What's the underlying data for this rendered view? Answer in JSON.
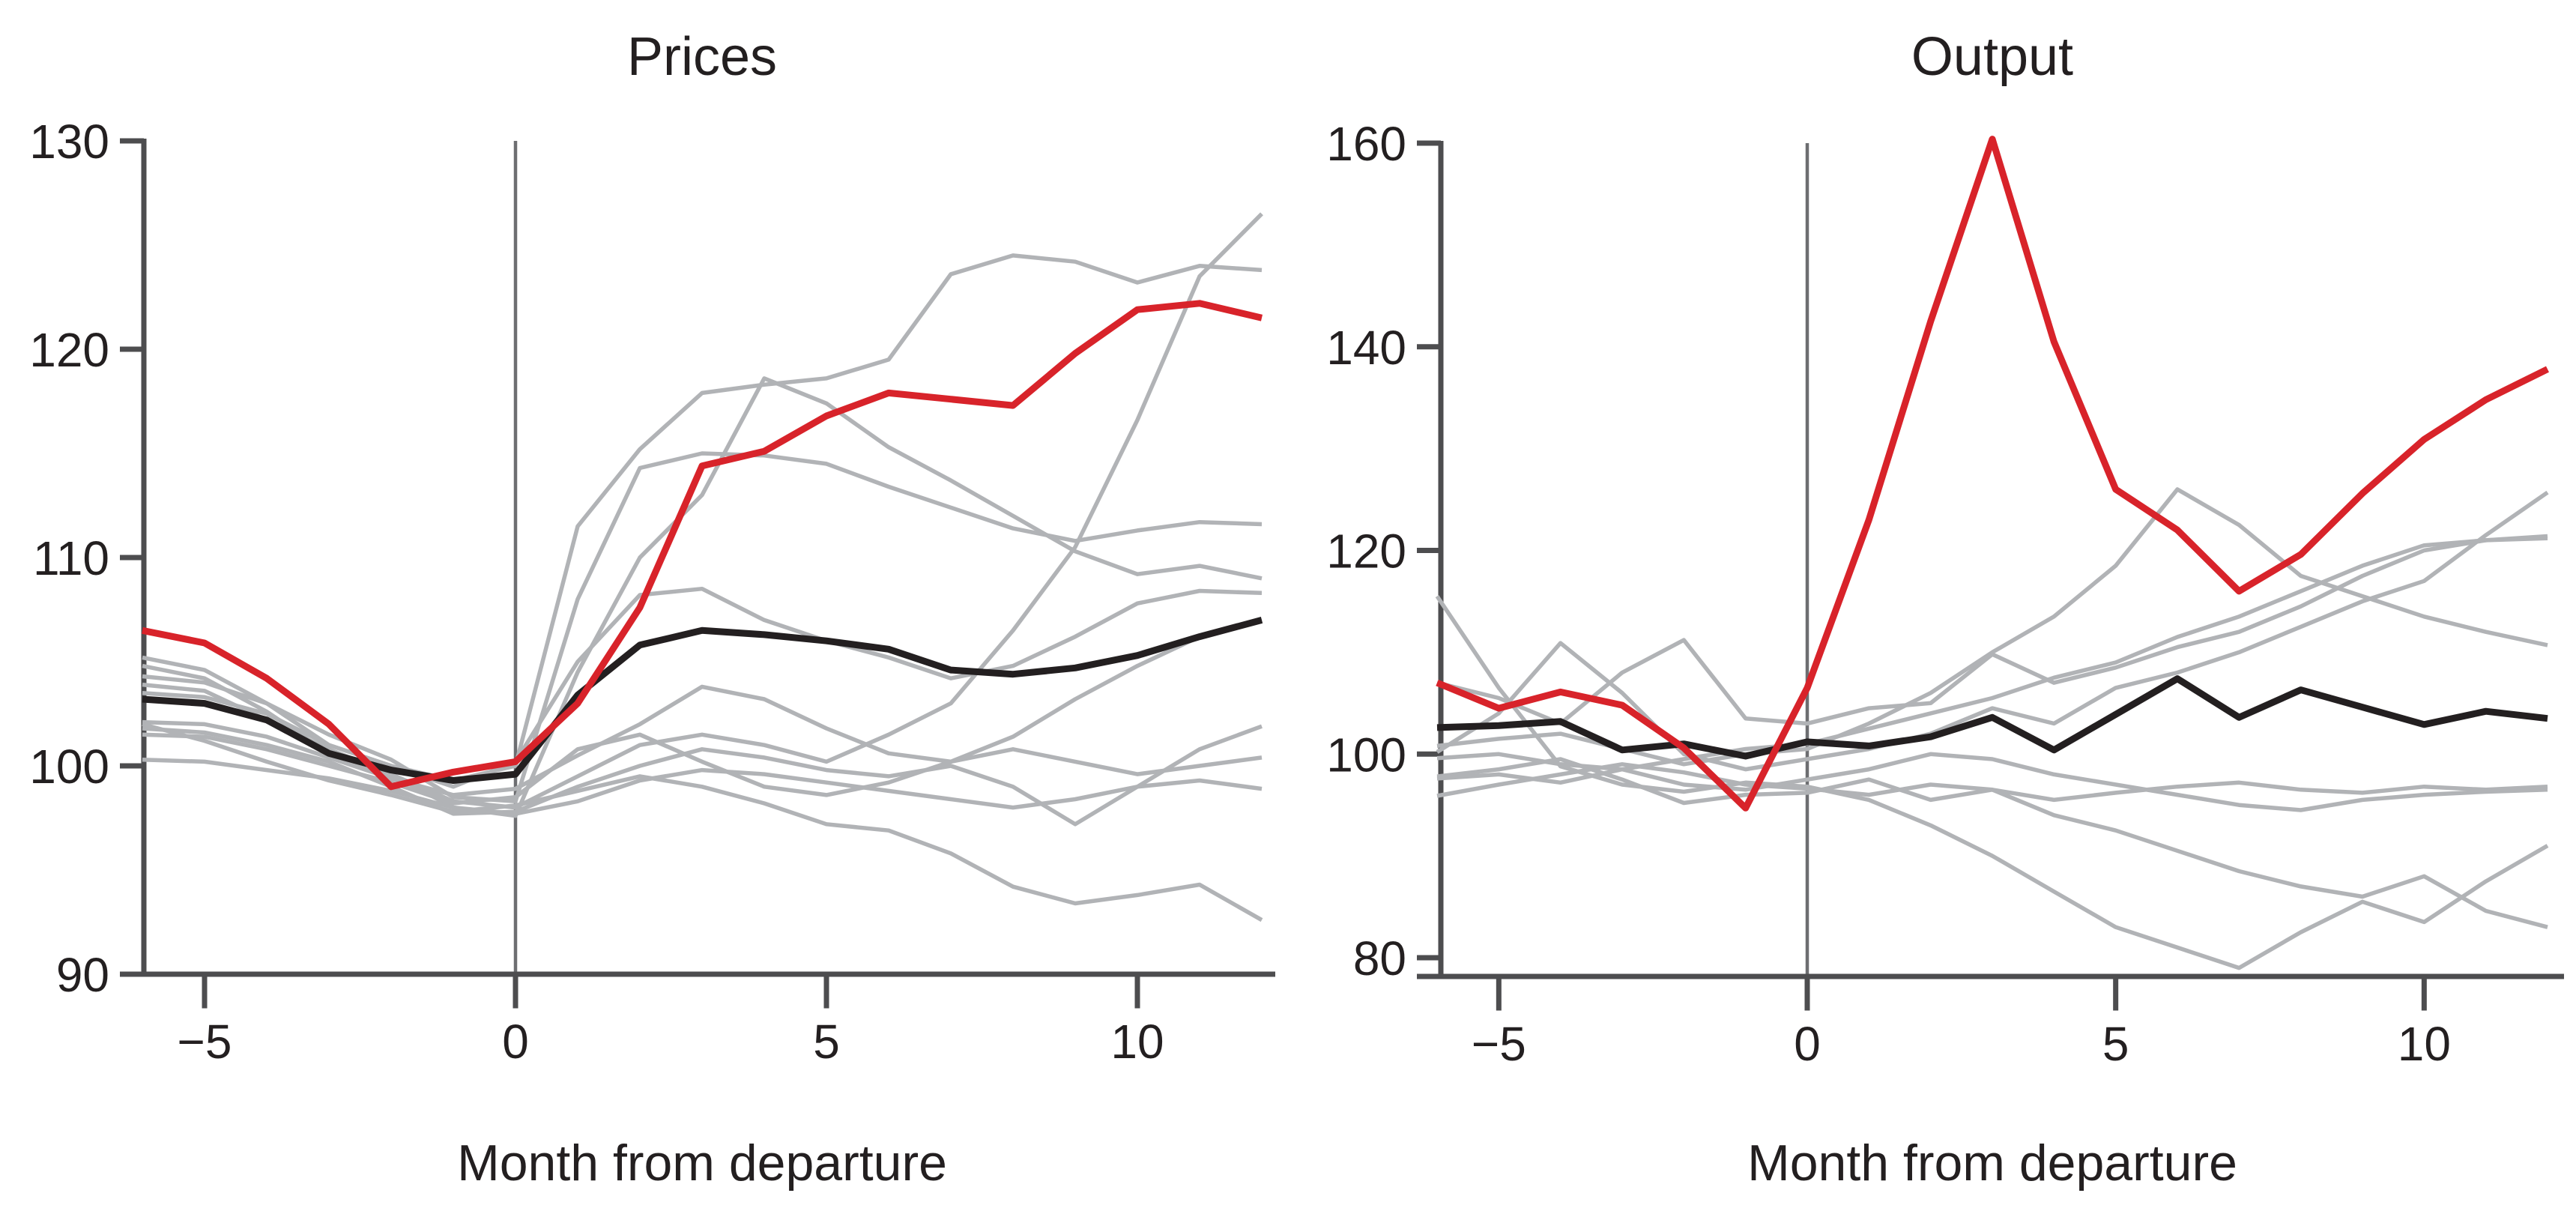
{
  "figure": {
    "background": "#ffffff",
    "accent_color": "#d8232a",
    "average_color": "#231f20",
    "gray_color": "#b1b3b6",
    "axis_color": "#4d4d4f",
    "ref_line_color": "#6d6e71"
  },
  "chart_data": [
    {
      "type": "line",
      "title": "Prices",
      "xlabel": "Month from departure",
      "x": [
        -6,
        -5,
        -4,
        -3,
        -2,
        -1,
        0,
        1,
        2,
        3,
        4,
        5,
        6,
        7,
        8,
        9,
        10,
        11,
        12
      ],
      "xlim": [
        -6,
        12
      ],
      "ylim": [
        90,
        130
      ],
      "yticks": [
        90,
        100,
        110,
        120,
        130
      ],
      "ytick_labels": [
        "90",
        "100",
        "110",
        "120",
        "130"
      ],
      "xticks": [
        -5,
        0,
        5,
        10
      ],
      "xtick_labels": [
        "−5",
        "0",
        "5",
        "10"
      ],
      "ref_line_x": 0,
      "grid": false,
      "legend": "none",
      "series": [
        {
          "name": "gray-1",
          "role": "episode",
          "color": "#b1b3b6",
          "width": 5.5,
          "values": [
            105.2,
            104.6,
            103.0,
            101.0,
            100.0,
            99.3,
            100.0,
            111.5,
            115.2,
            117.9,
            118.3,
            118.6,
            119.5,
            123.6,
            124.5,
            124.2,
            123.2,
            124.0,
            123.8
          ]
        },
        {
          "name": "gray-2",
          "role": "episode",
          "color": "#b1b3b6",
          "width": 5.5,
          "values": [
            104.8,
            104.2,
            102.6,
            100.6,
            99.6,
            98.0,
            97.6,
            104.5,
            110.0,
            113.0,
            118.6,
            117.4,
            115.3,
            113.7,
            112.0,
            110.3,
            109.2,
            109.6,
            109.0
          ]
        },
        {
          "name": "gray-3",
          "role": "episode",
          "color": "#b1b3b6",
          "width": 5.5,
          "values": [
            104.3,
            104.0,
            103.0,
            101.5,
            100.3,
            98.5,
            98.3,
            108.0,
            114.3,
            115.0,
            114.9,
            114.5,
            113.4,
            112.4,
            111.4,
            110.8,
            111.3,
            111.7,
            111.6
          ]
        },
        {
          "name": "gray-4",
          "role": "episode",
          "color": "#b1b3b6",
          "width": 5.5,
          "values": [
            103.9,
            103.6,
            102.2,
            100.8,
            99.6,
            98.3,
            98.0,
            99.5,
            101.0,
            101.5,
            101.0,
            100.2,
            101.5,
            103.0,
            106.5,
            110.5,
            116.6,
            123.5,
            126.5
          ]
        },
        {
          "name": "gray-5",
          "role": "episode",
          "color": "#b1b3b6",
          "width": 5.5,
          "values": [
            103.5,
            103.3,
            102.5,
            101.0,
            100.0,
            99.0,
            100.2,
            105.0,
            108.2,
            108.5,
            107.0,
            106.0,
            105.2,
            104.2,
            104.8,
            106.2,
            107.8,
            108.4,
            108.3
          ]
        },
        {
          "name": "gray-6",
          "role": "episode",
          "color": "#b1b3b6",
          "width": 5.5,
          "values": [
            102.1,
            102.0,
            101.4,
            100.4,
            99.4,
            98.6,
            98.9,
            100.5,
            102.0,
            103.8,
            103.2,
            101.8,
            100.6,
            100.2,
            101.4,
            103.2,
            104.8,
            106.2,
            107.0
          ]
        },
        {
          "name": "gray-7",
          "role": "episode",
          "color": "#b1b3b6",
          "width": 5.5,
          "values": [
            101.8,
            101.6,
            101.0,
            100.2,
            99.0,
            97.7,
            97.8,
            99.0,
            100.0,
            100.8,
            100.4,
            99.8,
            99.5,
            100.0,
            99.0,
            97.2,
            99.0,
            100.8,
            101.9
          ]
        },
        {
          "name": "gray-8",
          "role": "episode",
          "color": "#b1b3b6",
          "width": 5.5,
          "values": [
            101.5,
            101.4,
            100.8,
            100.0,
            99.2,
            98.2,
            98.5,
            100.8,
            101.5,
            100.2,
            99.0,
            98.6,
            99.2,
            100.2,
            100.8,
            100.2,
            99.6,
            100.0,
            100.4
          ]
        },
        {
          "name": "gray-9",
          "role": "episode",
          "color": "#b1b3b6",
          "width": 5.5,
          "values": [
            100.3,
            100.2,
            99.8,
            99.4,
            98.8,
            98.0,
            97.7,
            98.3,
            99.3,
            99.8,
            99.6,
            99.2,
            98.8,
            98.4,
            98.0,
            98.4,
            99.0,
            99.3,
            98.9
          ]
        },
        {
          "name": "gray-10",
          "role": "episode",
          "color": "#b1b3b6",
          "width": 5.5,
          "values": [
            102.0,
            101.2,
            100.2,
            99.3,
            98.6,
            97.8,
            98.1,
            98.8,
            99.5,
            99.0,
            98.2,
            97.2,
            96.9,
            95.8,
            94.2,
            93.4,
            93.8,
            94.3,
            92.6
          ]
        },
        {
          "name": "average",
          "role": "average",
          "color": "#231f20",
          "width": 9,
          "values": [
            103.2,
            103.0,
            102.2,
            100.6,
            99.8,
            99.3,
            99.6,
            103.4,
            105.8,
            106.5,
            106.3,
            106.0,
            105.6,
            104.6,
            104.4,
            104.7,
            105.3,
            106.2,
            107.0
          ]
        },
        {
          "name": "highlighted",
          "role": "highlight",
          "color": "#d8232a",
          "width": 9,
          "values": [
            106.5,
            105.9,
            104.2,
            102.0,
            99.0,
            99.7,
            100.2,
            103.0,
            107.6,
            114.4,
            115.1,
            116.8,
            117.9,
            117.6,
            117.3,
            119.8,
            121.9,
            122.2,
            121.5
          ]
        }
      ]
    },
    {
      "type": "line",
      "title": "Output",
      "xlabel": "Month from departure",
      "x": [
        -6,
        -5,
        -4,
        -3,
        -2,
        -1,
        0,
        1,
        2,
        3,
        4,
        5,
        6,
        7,
        8,
        9,
        10,
        11,
        12
      ],
      "xlim": [
        -6,
        12
      ],
      "ylim": [
        80,
        160
      ],
      "yticks": [
        80,
        100,
        120,
        140,
        160
      ],
      "ytick_labels": [
        "80",
        "100",
        "120",
        "140",
        "160"
      ],
      "xticks": [
        -5,
        0,
        5,
        10
      ],
      "xtick_labels": [
        "−5",
        "0",
        "5",
        "10"
      ],
      "ref_line_x": 0,
      "grid": false,
      "legend": "none",
      "series": [
        {
          "name": "gray-1",
          "role": "episode",
          "color": "#b1b3b6",
          "width": 5.5,
          "values": [
            115.5,
            106.5,
            98.8,
            97.0,
            96.3,
            97.2,
            96.8,
            95.5,
            93.0,
            90.0,
            86.5,
            83.0,
            81.0,
            79.0,
            82.5,
            85.5,
            83.5,
            87.5,
            91.0
          ]
        },
        {
          "name": "gray-2",
          "role": "episode",
          "color": "#b1b3b6",
          "width": 5.5,
          "values": [
            97.8,
            98.5,
            99.5,
            97.5,
            95.2,
            96.0,
            96.2,
            97.5,
            95.5,
            96.5,
            94.0,
            92.5,
            90.5,
            88.5,
            87.0,
            86.0,
            88.0,
            84.6,
            83.0
          ]
        },
        {
          "name": "gray-3",
          "role": "episode",
          "color": "#b1b3b6",
          "width": 5.5,
          "values": [
            95.9,
            97.0,
            98.0,
            99.0,
            98.2,
            97.0,
            96.6,
            96.0,
            97.0,
            96.5,
            95.5,
            96.2,
            96.8,
            97.2,
            96.5,
            96.2,
            96.8,
            96.5,
            96.8
          ]
        },
        {
          "name": "gray-4",
          "role": "episode",
          "color": "#b1b3b6",
          "width": 5.5,
          "values": [
            100.8,
            101.5,
            102.0,
            100.5,
            99.0,
            100.0,
            100.5,
            103.0,
            106.0,
            110.0,
            113.5,
            118.5,
            126.0,
            122.5,
            117.5,
            115.5,
            113.5,
            112.0,
            110.7
          ]
        },
        {
          "name": "gray-5",
          "role": "episode",
          "color": "#b1b3b6",
          "width": 5.5,
          "values": [
            100.2,
            104.0,
            110.9,
            106.0,
            100.0,
            98.5,
            99.5,
            100.5,
            102.0,
            104.5,
            103.0,
            106.5,
            108.0,
            110.0,
            112.5,
            115.0,
            117.0,
            121.5,
            125.7
          ]
        },
        {
          "name": "gray-6",
          "role": "episode",
          "color": "#b1b3b6",
          "width": 5.5,
          "values": [
            107.0,
            105.5,
            103.0,
            108.0,
            111.2,
            103.5,
            103.0,
            104.5,
            105.0,
            109.8,
            107.0,
            108.5,
            110.5,
            112.0,
            114.5,
            117.5,
            120.0,
            121.0,
            121.4
          ]
        },
        {
          "name": "gray-7",
          "role": "episode",
          "color": "#b1b3b6",
          "width": 5.5,
          "values": [
            99.6,
            100.0,
            99.0,
            98.5,
            99.5,
            100.5,
            101.0,
            102.5,
            104.0,
            105.5,
            107.5,
            109.0,
            111.5,
            113.5,
            116.0,
            118.5,
            120.5,
            121.0,
            121.2
          ]
        },
        {
          "name": "gray-8",
          "role": "episode",
          "color": "#b1b3b6",
          "width": 5.5,
          "values": [
            97.6,
            98.0,
            97.2,
            98.5,
            97.0,
            96.5,
            97.5,
            98.5,
            100.0,
            99.5,
            98.0,
            97.0,
            96.0,
            95.0,
            94.5,
            95.5,
            96.0,
            96.3,
            96.5
          ]
        },
        {
          "name": "average",
          "role": "average",
          "color": "#231f20",
          "width": 9,
          "values": [
            102.6,
            102.8,
            103.2,
            100.4,
            101.0,
            99.8,
            101.2,
            100.8,
            101.7,
            103.6,
            100.4,
            103.9,
            107.4,
            103.6,
            106.3,
            104.6,
            102.9,
            104.2,
            103.5
          ]
        },
        {
          "name": "highlighted",
          "role": "highlight",
          "color": "#d8232a",
          "width": 9,
          "values": [
            107.0,
            104.5,
            106.1,
            104.8,
            100.6,
            94.7,
            106.5,
            123.0,
            142.5,
            160.4,
            140.5,
            126.0,
            122.0,
            116.0,
            119.6,
            125.6,
            130.9,
            134.8,
            137.8
          ]
        }
      ]
    }
  ]
}
